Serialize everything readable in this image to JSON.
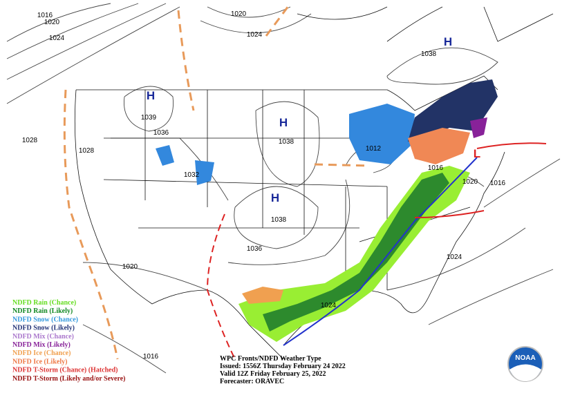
{
  "isobar_labels": [
    "1016",
    "1020",
    "1024",
    "1020",
    "1024",
    "1038",
    "1039",
    "1036",
    "1028",
    "1028",
    "1032",
    "1038",
    "1012",
    "1016",
    "1038",
    "1036",
    "1020",
    "1016",
    "1024",
    "1020",
    "1024",
    "1016"
  ],
  "pressure_centers": [
    "H",
    "H",
    "H",
    "H",
    "L"
  ],
  "legend": [
    {
      "label": "NDFD Rain (Chance)",
      "color": "#66dd22"
    },
    {
      "label": "NDFD Rain (Likely)",
      "color": "#118822"
    },
    {
      "label": "NDFD Snow (Chance)",
      "color": "#3399dd"
    },
    {
      "label": "NDFD Snow (Likely)",
      "color": "#223377"
    },
    {
      "label": "NDFD Mix (Chance)",
      "color": "#aa77cc"
    },
    {
      "label": "NDFD Mix (Likely)",
      "color": "#882299"
    },
    {
      "label": "NDFD Ice (Chance)",
      "color": "#f0a050"
    },
    {
      "label": "NDFD Ice (Likely)",
      "color": "#ee7744"
    },
    {
      "label": "NDFD T-Storm (Chance) (Hatched)",
      "color": "#dd3333"
    },
    {
      "label": "NDFD T-Storm (Likely and/or Severe)",
      "color": "#991111"
    }
  ],
  "info": {
    "title": "WPC Fronts/NDFD Weather Type",
    "issued": "Issued: 1556Z Thursday February 24 2022",
    "valid": "Valid 12Z Friday February 25, 2022",
    "forecaster": "Forecaster: ORAVEC"
  },
  "logo": "NOAA"
}
